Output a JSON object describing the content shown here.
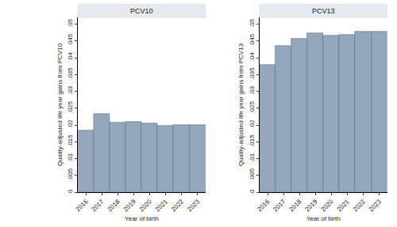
{
  "chart_data": [
    {
      "type": "bar",
      "title": "PCV10",
      "x_label": "Year of birth",
      "y_label": "Quality-adjusted life year gains from PCV10",
      "categories": [
        "2016",
        "2017",
        "2018",
        "2019",
        "2020",
        "2021",
        "2022",
        "2023"
      ],
      "values": [
        0.0183,
        0.0232,
        0.0208,
        0.021,
        0.0205,
        0.0197,
        0.0199,
        0.0199
      ],
      "color": "#94a7bb",
      "ylim": [
        0,
        0.052
      ],
      "yticks": [
        0,
        {
          "value": 0.005,
          "label": ".005"
        },
        {
          "value": 0.01,
          "label": ".01"
        },
        {
          "value": 0.015,
          "label": ".015"
        },
        {
          "value": 0.02,
          "label": ".02"
        },
        {
          "value": 0.025,
          "label": ".025"
        },
        {
          "value": 0.03,
          "label": ".03"
        },
        {
          "value": 0.035,
          "label": ".035"
        },
        {
          "value": 0.04,
          "label": ".04"
        },
        {
          "value": 0.045,
          "label": ".045"
        },
        {
          "value": 0.05,
          "label": ".05"
        }
      ],
      "grid": false
    },
    {
      "type": "bar",
      "title": "PCV13",
      "x_label": "Year of birth",
      "y_label": "Quality-adjusted life year gains from PCV13",
      "categories": [
        "2016",
        "2017",
        "2018",
        "2019",
        "2020",
        "2021",
        "2022",
        "2023"
      ],
      "values": [
        0.038,
        0.0435,
        0.0457,
        0.0473,
        0.0467,
        0.0469,
        0.0478,
        0.0478
      ],
      "color": "#94a7bb",
      "ylim": [
        0,
        0.052
      ],
      "yticks": [
        0,
        {
          "value": 0.005,
          "label": ".005"
        },
        {
          "value": 0.01,
          "label": ".01"
        },
        {
          "value": 0.015,
          "label": ".015"
        },
        {
          "value": 0.02,
          "label": ".02"
        },
        {
          "value": 0.025,
          "label": ".025"
        },
        {
          "value": 0.03,
          "label": ".03"
        },
        {
          "value": 0.035,
          "label": ".035"
        },
        {
          "value": 0.04,
          "label": ".04"
        },
        {
          "value": 0.045,
          "label": ".045"
        },
        {
          "value": 0.05,
          "label": ".05"
        }
      ],
      "grid": false
    }
  ]
}
